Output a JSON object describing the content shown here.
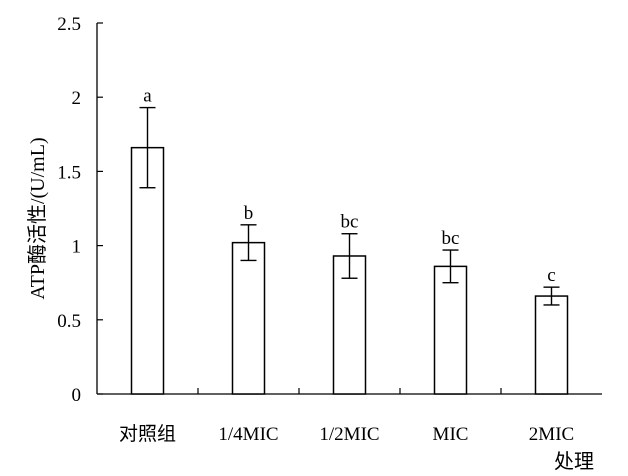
{
  "chart_data": {
    "type": "bar",
    "title": "",
    "xlabel": "处理",
    "ylabel": "ATP酶活性/(U/mL)",
    "ylim": [
      0,
      2.5
    ],
    "yticks": [
      "0",
      "0.5",
      "1",
      "1.5",
      "2",
      "2.5"
    ],
    "categories": [
      "对照组",
      "1/4MIC",
      "1/2MIC",
      "MIC",
      "2MIC"
    ],
    "values": [
      1.66,
      1.02,
      0.93,
      0.86,
      0.66
    ],
    "errors": [
      0.27,
      0.12,
      0.15,
      0.11,
      0.06
    ],
    "significance": [
      "a",
      "b",
      "bc",
      "bc",
      "c"
    ],
    "grid": false,
    "legend": "none",
    "bar_color": "#ffffff",
    "line_color": "#000000"
  }
}
